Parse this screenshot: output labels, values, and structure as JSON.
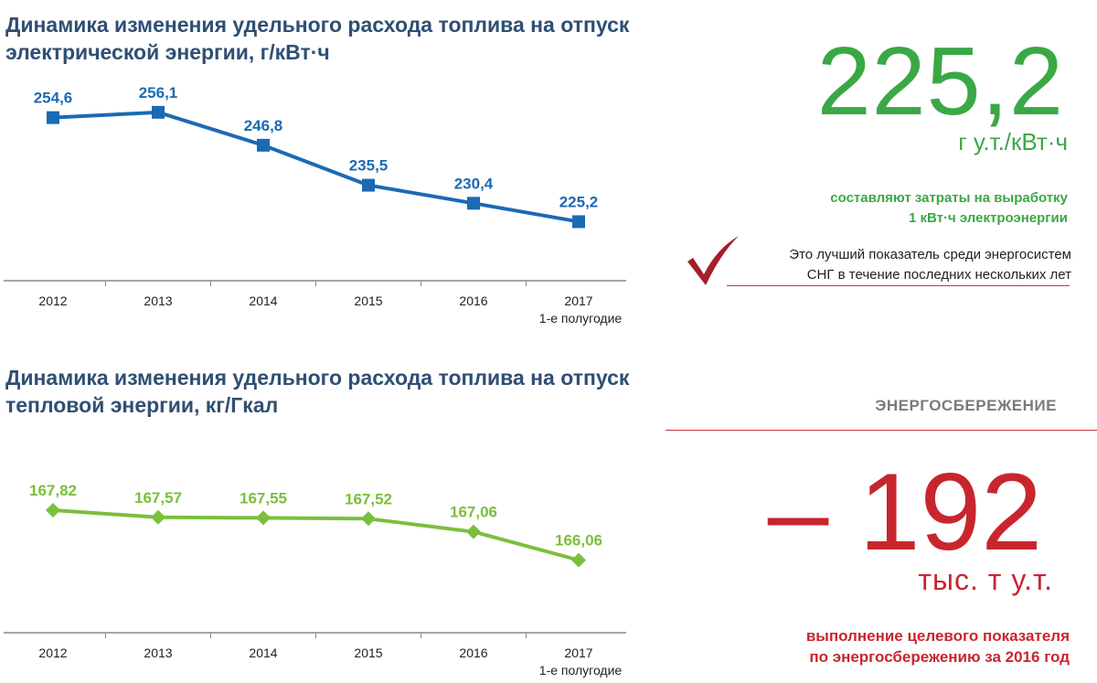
{
  "chart_data": [
    {
      "type": "line",
      "title": "Динамика изменения удельного расхода топлива на отпуск электрической энергии, г/кВт·ч",
      "categories": [
        "2012",
        "2013",
        "2014",
        "2015",
        "2016",
        "2017"
      ],
      "category_sublabels": [
        "",
        "",
        "",
        "",
        "",
        "1-е полугодие"
      ],
      "values": [
        254.6,
        256.1,
        246.8,
        235.5,
        230.4,
        225.2
      ],
      "value_labels": [
        "254,6",
        "256,1",
        "246,8",
        "235,5",
        "230,4",
        "225,2"
      ],
      "ylim": [
        200,
        262
      ],
      "marker": "square",
      "color": "#1b6ab4",
      "grid": false
    },
    {
      "type": "line",
      "title": "Динамика изменения удельного расхода топлива на отпуск тепловой энергии, кг/Гкал",
      "categories": [
        "2012",
        "2013",
        "2014",
        "2015",
        "2016",
        "2017"
      ],
      "category_sublabels": [
        "",
        "",
        "",
        "",
        "",
        "1-е полугодие"
      ],
      "values": [
        167.82,
        167.57,
        167.55,
        167.52,
        167.06,
        166.06
      ],
      "value_labels": [
        "167,82",
        "167,57",
        "167,55",
        "167,52",
        "167,06",
        "166,06"
      ],
      "ylim": [
        162.6,
        168.4
      ],
      "marker": "diamond",
      "color": "#7bbf3c",
      "grid": false
    }
  ],
  "panel_electric": {
    "value": "225,2",
    "unit": "г у.т./кВт·ч",
    "description_line1": "составляют затраты на выработку",
    "description_line2": "1 кВт·ч электроэнергии",
    "note_line1": "Это лучший показатель среди энергосистем",
    "note_line2": "СНГ в течение последних нескольких лет",
    "check_icon": "checkmark-icon",
    "accent_color": "#3aa845"
  },
  "panel_saving": {
    "heading": "ЭНЕРГОСБЕРЕЖЕНИЕ",
    "value": "– 192",
    "unit": "тыс. т у.т.",
    "description_line1": "выполнение целевого показателя",
    "description_line2": "по энергосбережению за 2016 год",
    "accent_color": "#c8262e"
  }
}
